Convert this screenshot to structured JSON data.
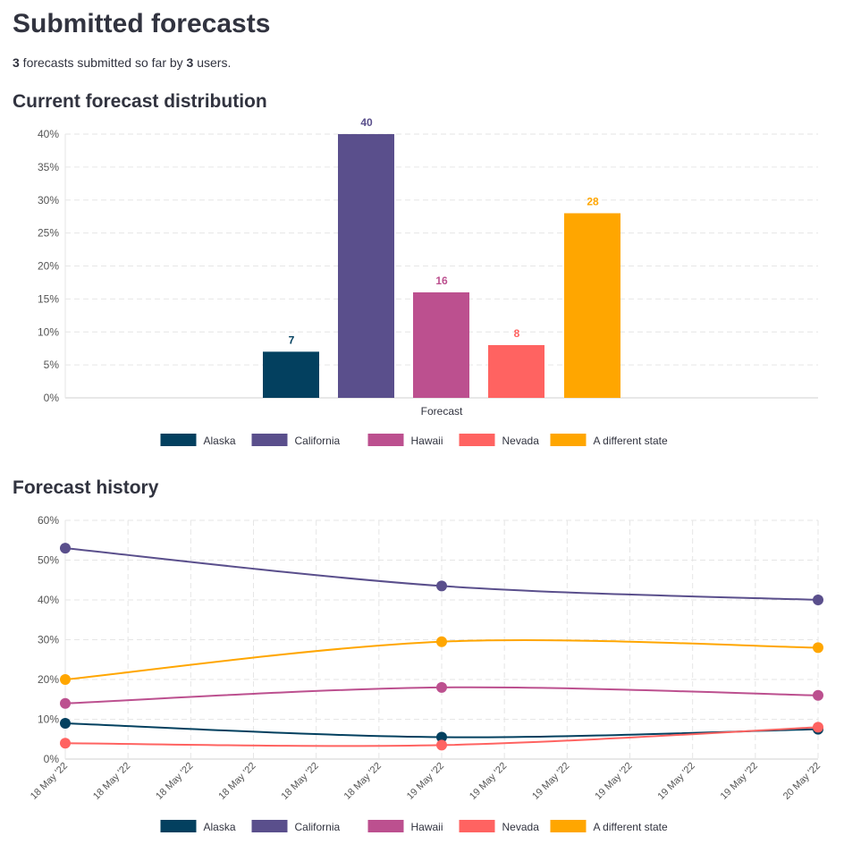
{
  "title": "Submitted forecasts",
  "summary": {
    "forecasts": "3",
    "text1": " forecasts submitted so far by ",
    "users": "3",
    "text2": " users."
  },
  "chart_data": [
    {
      "type": "bar",
      "title": "Current forecast distribution",
      "xlabel": "Forecast",
      "ylabel": "",
      "categories": [
        "Alaska",
        "California",
        "Hawaii",
        "Nevada",
        "A different state"
      ],
      "values": [
        7,
        40,
        16,
        8,
        28
      ],
      "colors": [
        "#03405f",
        "#5a4f8c",
        "#bc508f",
        "#ff6361",
        "#ffa600"
      ],
      "ylim": [
        0,
        40
      ],
      "yticks": [
        "0%",
        "5%",
        "10%",
        "15%",
        "20%",
        "25%",
        "30%",
        "35%",
        "40%"
      ],
      "legend": "bottom",
      "grid": true
    },
    {
      "type": "line",
      "title": "Forecast history",
      "xticks": [
        "18 May '22",
        "18 May '22",
        "18 May '22",
        "18 May '22",
        "18 May '22",
        "18 May '22",
        "19 May '22",
        "19 May '22",
        "19 May '22",
        "19 May '22",
        "19 May '22",
        "19 May '22",
        "20 May '22"
      ],
      "point_index": [
        0,
        6,
        12
      ],
      "series": [
        {
          "name": "Alaska",
          "color": "#03405f",
          "values": [
            9,
            5.5,
            7.5
          ]
        },
        {
          "name": "California",
          "color": "#5a4f8c",
          "values": [
            53,
            43.5,
            40
          ]
        },
        {
          "name": "Hawaii",
          "color": "#bc508f",
          "values": [
            14,
            18,
            16
          ]
        },
        {
          "name": "Nevada",
          "color": "#ff6361",
          "values": [
            4,
            3.5,
            8
          ]
        },
        {
          "name": "A different state",
          "color": "#ffa600",
          "values": [
            20,
            29.5,
            28
          ]
        }
      ],
      "ylim": [
        0,
        60
      ],
      "yticks": [
        "0%",
        "10%",
        "20%",
        "30%",
        "40%",
        "50%",
        "60%"
      ],
      "legend": "bottom",
      "grid": true
    }
  ]
}
